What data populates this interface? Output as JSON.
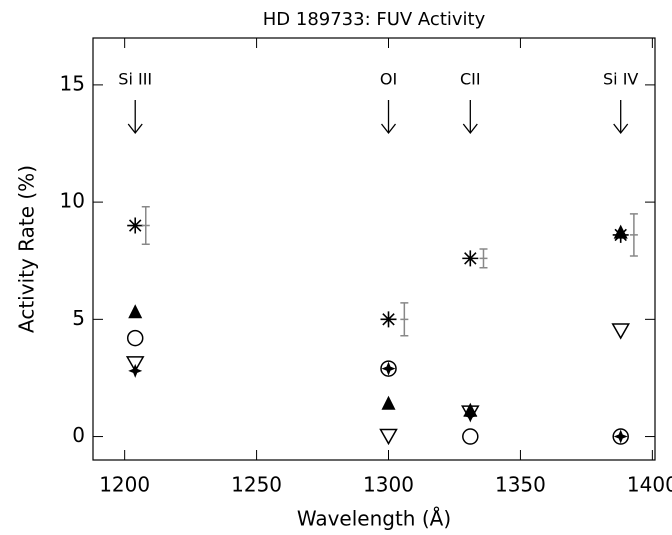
{
  "chart_data": {
    "type": "scatter",
    "title": "HD 189733: FUV Activity",
    "xlabel": "Wavelength (Å)",
    "ylabel": "Activity Rate (%)",
    "xlim": [
      1188,
      1401
    ],
    "ylim": [
      -1,
      17
    ],
    "xticks": [
      1200,
      1250,
      1300,
      1350,
      1400
    ],
    "yticks": [
      0,
      5,
      10,
      15
    ],
    "annotations": [
      {
        "text": "Si III",
        "x": 1204
      },
      {
        "text": "OI",
        "x": 1300
      },
      {
        "text": "CII",
        "x": 1331
      },
      {
        "text": "Si IV",
        "x": 1388
      }
    ],
    "series": [
      {
        "marker": "asterisk",
        "color": "#000000",
        "x": [
          1204,
          1300,
          1331,
          1388
        ],
        "values": [
          9.0,
          5.0,
          7.6,
          8.6
        ]
      },
      {
        "marker": "errorbar",
        "color": "#888888",
        "x": [
          1208,
          1306,
          1336,
          1393
        ],
        "values": [
          9.0,
          5.0,
          7.6,
          8.6
        ],
        "errors": [
          0.8,
          0.7,
          0.4,
          0.9
        ]
      },
      {
        "marker": "triangle-up-filled",
        "color": "#000000",
        "x": [
          1204,
          1300,
          1331,
          1388
        ],
        "values": [
          5.3,
          1.4,
          1.1,
          8.7
        ]
      },
      {
        "marker": "circle-open",
        "color": "#000000",
        "x": [
          1204,
          1300,
          1331,
          1388
        ],
        "values": [
          4.2,
          2.9,
          0,
          0
        ]
      },
      {
        "marker": "triangle-down-open",
        "color": "#000000",
        "x": [
          1204,
          1300,
          1331,
          1388
        ],
        "values": [
          3.1,
          0,
          1.0,
          4.5
        ]
      },
      {
        "marker": "star4-filled",
        "color": "#000000",
        "x": [
          1204,
          1300,
          1331,
          1388
        ],
        "values": [
          2.8,
          2.9,
          0.9,
          0
        ]
      }
    ]
  }
}
